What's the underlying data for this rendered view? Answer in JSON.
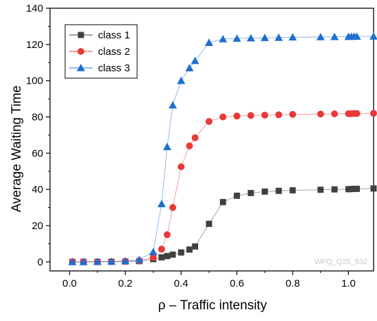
{
  "chart_data": {
    "type": "line",
    "xlabel": "ρ – Traffic intensity",
    "ylabel": "Average Waiting Time",
    "xlim": [
      -0.07,
      1.09
    ],
    "ylim": [
      -5,
      140
    ],
    "xticks": [
      0.0,
      0.2,
      0.4,
      0.6,
      0.8,
      1.0
    ],
    "yticks": [
      0,
      20,
      40,
      60,
      80,
      100,
      120,
      140
    ],
    "x_tick_labels": [
      "0.0",
      "0.2",
      "0.4",
      "0.6",
      "0.8",
      "1.0"
    ],
    "y_tick_labels": [
      "0",
      "20",
      "40",
      "60",
      "80",
      "100",
      "120",
      "140"
    ],
    "grid": false,
    "legend_position": "top-left",
    "watermark": "WFQ_Q25_532",
    "series": [
      {
        "name": "class 1",
        "marker": "square",
        "color": "#404040",
        "x": [
          0.01,
          0.05,
          0.1,
          0.15,
          0.2,
          0.25,
          0.3,
          0.33,
          0.35,
          0.37,
          0.4,
          0.43,
          0.45,
          0.5,
          0.55,
          0.6,
          0.65,
          0.7,
          0.75,
          0.8,
          0.9,
          0.95,
          1.0,
          1.01,
          1.02,
          1.03,
          1.09
        ],
        "y": [
          0,
          0,
          0,
          0.1,
          0.2,
          0.4,
          1.5,
          2.5,
          3.2,
          4.0,
          5.2,
          6.8,
          8.5,
          21,
          33,
          36.5,
          38,
          38.8,
          39.2,
          39.5,
          39.8,
          40,
          40.1,
          40.2,
          40.3,
          40.3,
          40.5
        ]
      },
      {
        "name": "class 2",
        "marker": "circle",
        "color": "#e8393a",
        "x": [
          0.01,
          0.05,
          0.1,
          0.15,
          0.2,
          0.25,
          0.3,
          0.33,
          0.35,
          0.37,
          0.4,
          0.43,
          0.45,
          0.5,
          0.55,
          0.6,
          0.65,
          0.7,
          0.75,
          0.8,
          0.9,
          0.95,
          1.0,
          1.01,
          1.02,
          1.03,
          1.09
        ],
        "y": [
          0,
          0,
          0,
          0.1,
          0.3,
          0.6,
          2.5,
          7,
          15,
          30,
          52.5,
          64,
          68.5,
          77.5,
          80,
          80.5,
          80.8,
          81,
          81.2,
          81.4,
          81.6,
          81.7,
          81.8,
          81.8,
          81.9,
          81.9,
          82
        ]
      },
      {
        "name": "class 3",
        "marker": "triangle",
        "color": "#1f6fd1",
        "x": [
          0.01,
          0.05,
          0.1,
          0.15,
          0.2,
          0.25,
          0.3,
          0.33,
          0.35,
          0.37,
          0.4,
          0.43,
          0.45,
          0.5,
          0.55,
          0.6,
          0.65,
          0.7,
          0.75,
          0.8,
          0.9,
          0.95,
          1.0,
          1.01,
          1.02,
          1.03,
          1.09
        ],
        "y": [
          0,
          0,
          0.1,
          0.2,
          0.5,
          1.2,
          5.5,
          32,
          63.5,
          86.5,
          100,
          107,
          111,
          121,
          123,
          123.3,
          123.5,
          123.7,
          123.8,
          124,
          124.1,
          124.2,
          124.3,
          124.3,
          124.4,
          124.4,
          124.5
        ]
      }
    ]
  }
}
